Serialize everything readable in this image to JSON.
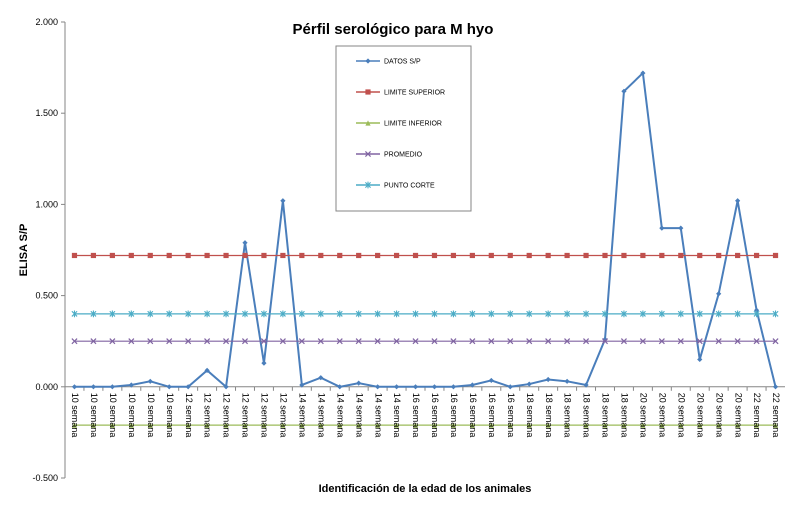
{
  "chart_data": {
    "type": "line",
    "title": "Pérfil serológico para M hyo",
    "xlabel": "Identificación de la edad de los animales",
    "ylabel": "ELISA  S/P",
    "ylim": [
      -0.5,
      2.0
    ],
    "yticks": [
      2.0,
      1.5,
      1.0,
      0.5,
      0.0,
      -0.5
    ],
    "ytick_labels": [
      "2.000",
      "1.500",
      "1.000",
      "0.500",
      "0.000",
      "-0.500"
    ],
    "grid": false,
    "legend_position": "top-center",
    "categories": [
      "10 semana",
      "10 semana",
      "10 semana",
      "10 semana",
      "10 semana",
      "10 semana",
      "12 semana",
      "12 semana",
      "12 semana",
      "12 semana",
      "12 semana",
      "12 semana",
      "14 semana",
      "14 semana",
      "14 semana",
      "14 semana",
      "14 semana",
      "14 semana",
      "16 semana",
      "16 semana",
      "16 semana",
      "16 semana",
      "16 semana",
      "16 semana",
      "18 semana",
      "18 semana",
      "18 semana",
      "18 semana",
      "18 semana",
      "18 semana",
      "20 semana",
      "20 semana",
      "20 semana",
      "20 semana",
      "20 semana",
      "20 semana",
      "22 semana",
      "22 semana"
    ],
    "series": [
      {
        "name": "DATOS S/P",
        "color": "#4a7ebb",
        "marker": "diamond",
        "values": [
          0.0,
          0.0,
          0.0,
          0.01,
          0.03,
          0.0,
          0.0,
          0.09,
          0.0,
          0.79,
          0.13,
          1.02,
          0.01,
          0.05,
          0.0,
          0.02,
          0.0,
          0.0,
          0.0,
          0.0,
          0.0,
          0.01,
          0.035,
          0.0,
          0.015,
          0.04,
          0.03,
          0.01,
          0.26,
          1.62,
          1.72,
          0.87,
          0.87,
          0.15,
          0.51,
          1.02,
          0.42,
          0.0
        ]
      },
      {
        "name": "LIMITE SUPERIOR",
        "color": "#c0504d",
        "marker": "square",
        "constant": 0.72
      },
      {
        "name": "LIMITE INFERIOR",
        "color": "#9bbb59",
        "marker": "triangle",
        "constant": -0.21
      },
      {
        "name": "PROMEDIO",
        "color": "#8064a2",
        "marker": "x",
        "constant": 0.25
      },
      {
        "name": "PUNTO CORTE",
        "color": "#4bacc6",
        "marker": "star",
        "constant": 0.4
      }
    ]
  }
}
